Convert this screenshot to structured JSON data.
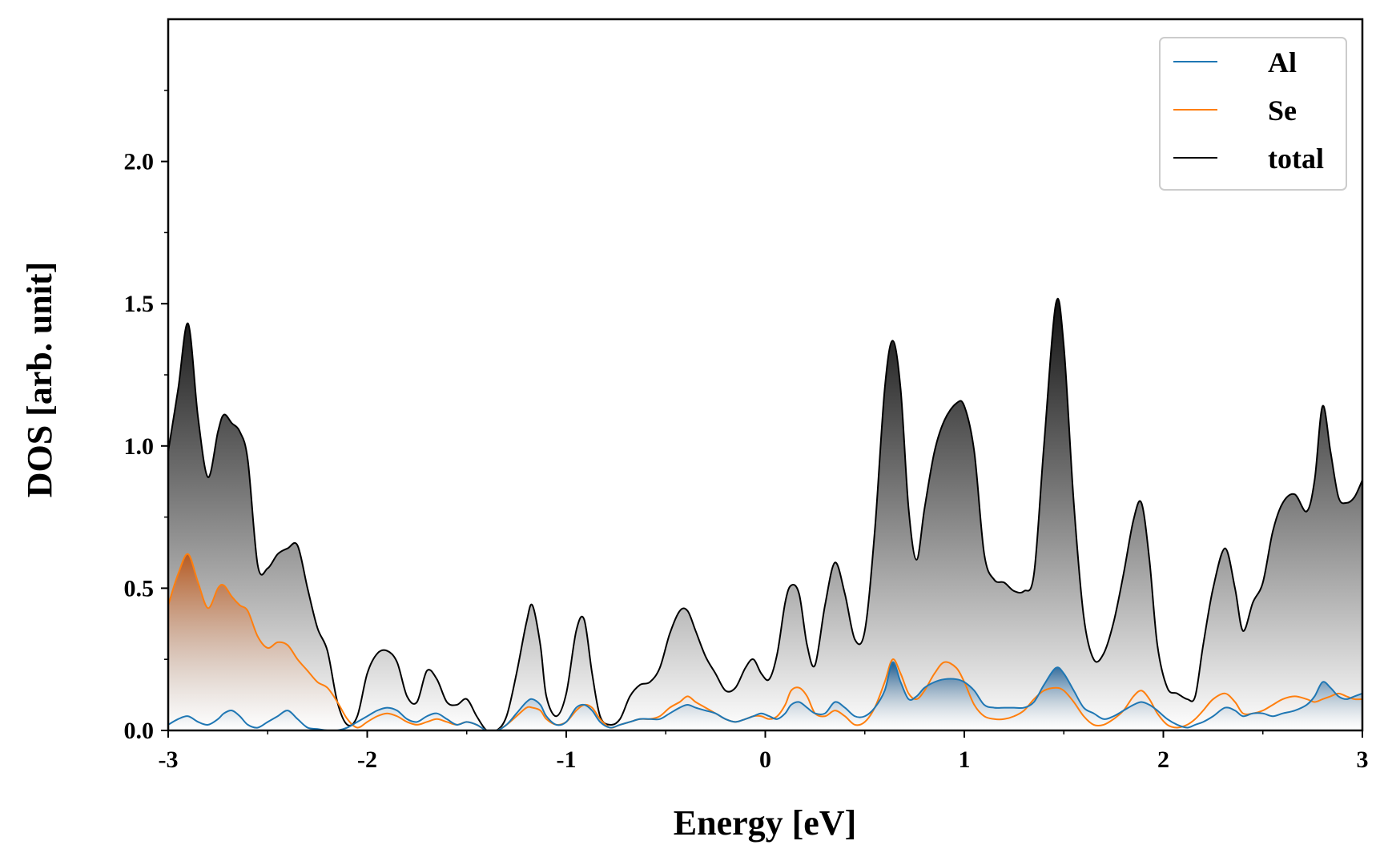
{
  "chart_data": {
    "type": "line",
    "xlabel": "Energy [eV]",
    "ylabel": "DOS [arb. unit]",
    "xlim": [
      -3,
      3
    ],
    "ylim": [
      0,
      2.5
    ],
    "x_ticks": [
      "-3",
      "-2",
      "-1",
      "0",
      "1",
      "2",
      "3"
    ],
    "y_ticks": [
      "0.0",
      "0.5",
      "1.0",
      "1.5",
      "2.0"
    ],
    "grid": false,
    "legend_position": "top-right",
    "fill_under": true,
    "x": [
      -3.0,
      -2.95,
      -2.9,
      -2.85,
      -2.8,
      -2.75,
      -2.72,
      -2.68,
      -2.64,
      -2.6,
      -2.55,
      -2.5,
      -2.45,
      -2.4,
      -2.35,
      -2.3,
      -2.25,
      -2.2,
      -2.15,
      -2.1,
      -2.05,
      -2.0,
      -1.95,
      -1.9,
      -1.85,
      -1.8,
      -1.75,
      -1.7,
      -1.65,
      -1.6,
      -1.55,
      -1.5,
      -1.45,
      -1.4,
      -1.35,
      -1.3,
      -1.25,
      -1.2,
      -1.17,
      -1.13,
      -1.1,
      -1.05,
      -1.0,
      -0.95,
      -0.91,
      -0.87,
      -0.83,
      -0.78,
      -0.73,
      -0.68,
      -0.63,
      -0.58,
      -0.53,
      -0.48,
      -0.43,
      -0.39,
      -0.35,
      -0.3,
      -0.25,
      -0.2,
      -0.15,
      -0.1,
      -0.06,
      -0.02,
      0.02,
      0.06,
      0.1,
      0.13,
      0.17,
      0.21,
      0.25,
      0.3,
      0.35,
      0.4,
      0.45,
      0.5,
      0.55,
      0.6,
      0.64,
      0.68,
      0.72,
      0.76,
      0.8,
      0.85,
      0.9,
      0.96,
      1.0,
      1.05,
      1.1,
      1.15,
      1.2,
      1.25,
      1.3,
      1.35,
      1.4,
      1.46,
      1.5,
      1.55,
      1.6,
      1.65,
      1.7,
      1.75,
      1.8,
      1.85,
      1.89,
      1.93,
      1.97,
      2.02,
      2.07,
      2.12,
      2.16,
      2.2,
      2.25,
      2.31,
      2.36,
      2.4,
      2.45,
      2.5,
      2.55,
      2.6,
      2.66,
      2.72,
      2.76,
      2.8,
      2.84,
      2.88,
      2.92,
      2.96,
      3.0
    ],
    "series": [
      {
        "name": "Al",
        "color": "#1f77b4",
        "values": [
          0.02,
          0.04,
          0.05,
          0.03,
          0.02,
          0.04,
          0.06,
          0.07,
          0.05,
          0.02,
          0.01,
          0.03,
          0.05,
          0.07,
          0.04,
          0.01,
          0.005,
          0.0,
          0.0,
          0.01,
          0.03,
          0.05,
          0.07,
          0.08,
          0.07,
          0.04,
          0.03,
          0.05,
          0.06,
          0.04,
          0.02,
          0.03,
          0.02,
          0.0,
          0.0,
          0.02,
          0.06,
          0.1,
          0.11,
          0.09,
          0.05,
          0.02,
          0.03,
          0.08,
          0.09,
          0.07,
          0.03,
          0.01,
          0.02,
          0.03,
          0.04,
          0.04,
          0.04,
          0.06,
          0.08,
          0.09,
          0.08,
          0.07,
          0.06,
          0.04,
          0.03,
          0.04,
          0.05,
          0.06,
          0.05,
          0.04,
          0.06,
          0.09,
          0.1,
          0.08,
          0.06,
          0.06,
          0.1,
          0.08,
          0.05,
          0.05,
          0.08,
          0.14,
          0.24,
          0.17,
          0.11,
          0.12,
          0.15,
          0.17,
          0.18,
          0.18,
          0.17,
          0.14,
          0.09,
          0.08,
          0.08,
          0.08,
          0.08,
          0.1,
          0.16,
          0.22,
          0.2,
          0.14,
          0.08,
          0.06,
          0.04,
          0.05,
          0.07,
          0.09,
          0.1,
          0.09,
          0.07,
          0.04,
          0.02,
          0.01,
          0.02,
          0.03,
          0.05,
          0.08,
          0.07,
          0.05,
          0.06,
          0.06,
          0.05,
          0.06,
          0.07,
          0.09,
          0.12,
          0.17,
          0.15,
          0.12,
          0.11,
          0.12,
          0.13
        ]
      },
      {
        "name": "Se",
        "color": "#ff7f0e",
        "values": [
          0.44,
          0.55,
          0.62,
          0.52,
          0.43,
          0.5,
          0.51,
          0.47,
          0.44,
          0.42,
          0.33,
          0.29,
          0.31,
          0.3,
          0.25,
          0.21,
          0.17,
          0.15,
          0.1,
          0.04,
          0.01,
          0.03,
          0.05,
          0.06,
          0.05,
          0.03,
          0.02,
          0.03,
          0.04,
          0.03,
          0.02,
          0.03,
          0.02,
          0.0,
          0.0,
          0.02,
          0.05,
          0.08,
          0.08,
          0.07,
          0.04,
          0.02,
          0.03,
          0.07,
          0.09,
          0.08,
          0.04,
          0.01,
          0.02,
          0.03,
          0.04,
          0.04,
          0.05,
          0.08,
          0.1,
          0.12,
          0.1,
          0.08,
          0.06,
          0.04,
          0.03,
          0.04,
          0.05,
          0.05,
          0.04,
          0.05,
          0.09,
          0.14,
          0.15,
          0.12,
          0.06,
          0.05,
          0.07,
          0.05,
          0.02,
          0.03,
          0.08,
          0.17,
          0.25,
          0.2,
          0.13,
          0.11,
          0.14,
          0.2,
          0.24,
          0.22,
          0.17,
          0.09,
          0.05,
          0.04,
          0.04,
          0.05,
          0.07,
          0.11,
          0.14,
          0.15,
          0.14,
          0.1,
          0.05,
          0.02,
          0.02,
          0.04,
          0.07,
          0.12,
          0.14,
          0.11,
          0.06,
          0.02,
          0.01,
          0.02,
          0.04,
          0.07,
          0.11,
          0.13,
          0.1,
          0.06,
          0.06,
          0.07,
          0.09,
          0.11,
          0.12,
          0.11,
          0.1,
          0.11,
          0.12,
          0.13,
          0.12,
          0.11,
          0.11
        ]
      },
      {
        "name": "total",
        "color": "#000000",
        "values": [
          0.98,
          1.2,
          1.43,
          1.1,
          0.89,
          1.05,
          1.11,
          1.08,
          1.05,
          0.95,
          0.58,
          0.57,
          0.62,
          0.64,
          0.65,
          0.5,
          0.36,
          0.28,
          0.1,
          0.02,
          0.05,
          0.2,
          0.27,
          0.28,
          0.24,
          0.12,
          0.1,
          0.21,
          0.18,
          0.1,
          0.09,
          0.11,
          0.05,
          0.0,
          0.0,
          0.05,
          0.2,
          0.38,
          0.44,
          0.3,
          0.12,
          0.05,
          0.13,
          0.35,
          0.39,
          0.2,
          0.05,
          0.02,
          0.04,
          0.12,
          0.16,
          0.17,
          0.22,
          0.34,
          0.42,
          0.42,
          0.35,
          0.26,
          0.2,
          0.14,
          0.15,
          0.22,
          0.25,
          0.2,
          0.18,
          0.27,
          0.45,
          0.51,
          0.48,
          0.3,
          0.23,
          0.44,
          0.59,
          0.48,
          0.32,
          0.35,
          0.7,
          1.2,
          1.37,
          1.2,
          0.78,
          0.6,
          0.78,
          0.98,
          1.09,
          1.15,
          1.14,
          0.98,
          0.62,
          0.53,
          0.52,
          0.49,
          0.49,
          0.55,
          1.0,
          1.5,
          1.35,
          0.8,
          0.4,
          0.25,
          0.27,
          0.38,
          0.55,
          0.74,
          0.8,
          0.6,
          0.3,
          0.15,
          0.13,
          0.11,
          0.12,
          0.3,
          0.5,
          0.64,
          0.5,
          0.35,
          0.45,
          0.52,
          0.7,
          0.8,
          0.83,
          0.77,
          0.88,
          1.14,
          0.98,
          0.82,
          0.8,
          0.82,
          0.88
        ]
      }
    ]
  }
}
